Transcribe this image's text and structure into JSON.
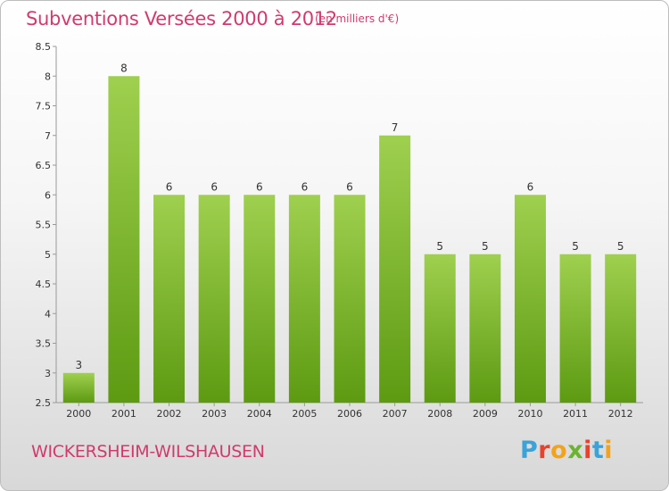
{
  "header": {
    "title": "Subventions Versées 2000 à 2012",
    "subtitle": "(en milliers d'€)"
  },
  "footer": {
    "commune": "WICKERSHEIM-WILSHAUSEN",
    "logo_text": "Proxiti",
    "logo_colors": [
      "#3aa3d9",
      "#e8412c",
      "#f2a31b",
      "#6ab42e",
      "#e8412c",
      "#3aa3d9",
      "#f2a31b"
    ]
  },
  "chart_data": {
    "type": "bar",
    "title": "Subventions Versées 2000 à 2012",
    "categories": [
      "2000",
      "2001",
      "2002",
      "2003",
      "2004",
      "2005",
      "2006",
      "2007",
      "2008",
      "2009",
      "2010",
      "2011",
      "2012"
    ],
    "values": [
      3,
      8,
      6,
      6,
      6,
      6,
      6,
      7,
      5,
      5,
      6,
      5,
      5
    ],
    "data_labels": [
      "3",
      "8",
      "6",
      "6",
      "6",
      "6",
      "6",
      "7",
      "5",
      "5",
      "6",
      "5",
      "5"
    ],
    "ylim": [
      2.5,
      8.5
    ],
    "yticks": [
      "2.5",
      "3",
      "3.5",
      "4",
      "4.5",
      "5",
      "5.5",
      "6",
      "6.5",
      "7",
      "7.5",
      "8",
      "8.5"
    ],
    "grid": false,
    "bar_color_top": "#9fd04f",
    "bar_color_bottom": "#5d9a12"
  }
}
